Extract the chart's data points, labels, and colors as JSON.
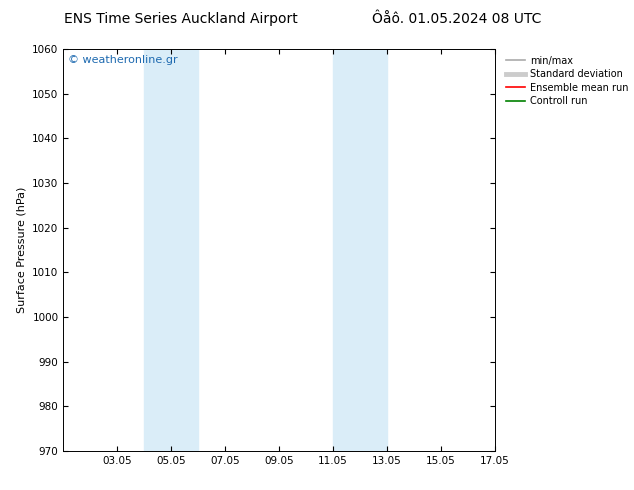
{
  "title_left": "ENS Time Series Auckland Airport",
  "title_right": "Ôåô. 01.05.2024 08 UTC",
  "ylabel": "Surface Pressure (hPa)",
  "ylim": [
    970,
    1060
  ],
  "yticks": [
    970,
    980,
    990,
    1000,
    1010,
    1020,
    1030,
    1040,
    1050,
    1060
  ],
  "xlim": [
    1,
    17
  ],
  "xtick_labels": [
    "03.05",
    "05.05",
    "07.05",
    "09.05",
    "11.05",
    "13.05",
    "15.05",
    "17.05"
  ],
  "xtick_positions": [
    3,
    5,
    7,
    9,
    11,
    13,
    15,
    17
  ],
  "shaded_bands": [
    {
      "x_start": 4.0,
      "x_end": 6.0
    },
    {
      "x_start": 11.0,
      "x_end": 13.0
    }
  ],
  "shaded_color": "#daedf8",
  "watermark_text": "© weatheronline.gr",
  "watermark_color": "#1e6ab0",
  "legend_entries": [
    {
      "label": "min/max",
      "color": "#aaaaaa",
      "lw": 1.2
    },
    {
      "label": "Standard deviation",
      "color": "#cccccc",
      "lw": 3.5
    },
    {
      "label": "Ensemble mean run",
      "color": "#ff0000",
      "lw": 1.2
    },
    {
      "label": "Controll run",
      "color": "#008000",
      "lw": 1.2
    }
  ],
  "background_color": "#ffffff",
  "title_fontsize": 10,
  "label_fontsize": 8,
  "tick_fontsize": 7.5,
  "watermark_fontsize": 8,
  "legend_fontsize": 7
}
